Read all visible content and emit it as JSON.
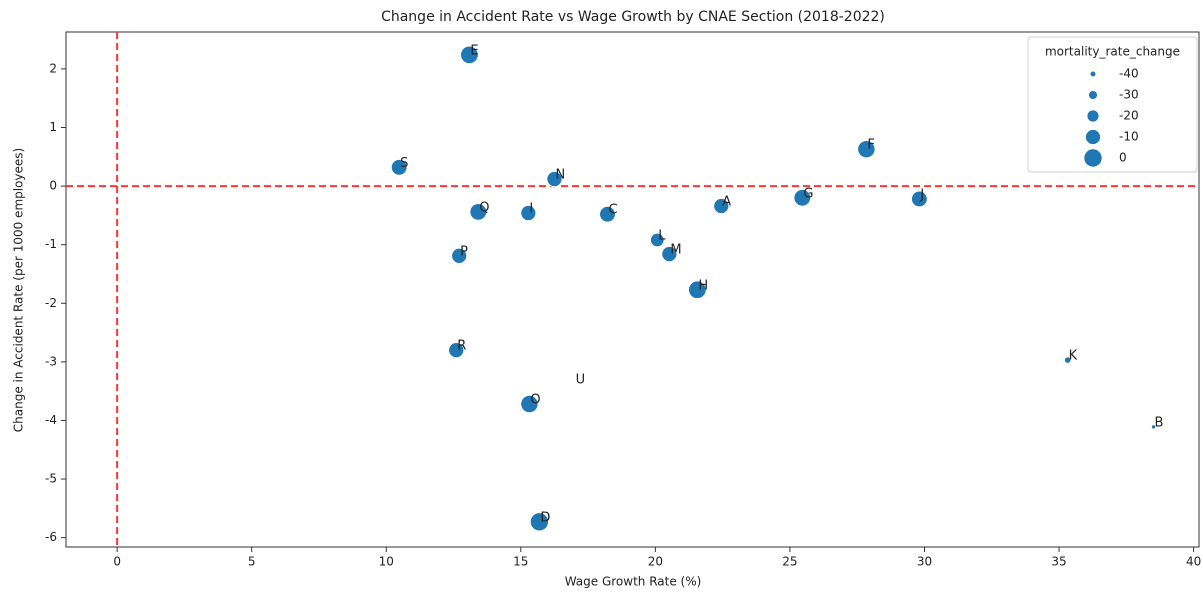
{
  "chart_data": {
    "type": "scatter",
    "title": "Change in Accident Rate vs Wage Growth by CNAE Section (2018-2022)",
    "x_label": "Wage Growth Rate (%)",
    "y_label": "Change in Accident Rate (per 1000 employees)",
    "size_legend_title": "mortality_rate_change",
    "size_legend": [
      -40,
      -30,
      -20,
      -10,
      0
    ],
    "labels": [
      "E",
      "S",
      "N",
      "Q",
      "I",
      "C",
      "A",
      "G",
      "F",
      "J",
      "L",
      "M",
      "P",
      "H",
      "R",
      "U",
      "O",
      "K",
      "B",
      "D"
    ],
    "x": [
      13.09,
      10.48,
      16.25,
      13.42,
      15.28,
      18.22,
      22.45,
      25.46,
      27.84,
      29.81,
      20.07,
      20.52,
      12.71,
      21.56,
      12.6,
      17.0,
      15.32,
      35.32,
      38.51,
      15.69
    ],
    "values": [
      2.24,
      0.32,
      0.12,
      -0.44,
      -0.46,
      -0.48,
      -0.34,
      -0.2,
      0.63,
      -0.22,
      -0.92,
      -1.16,
      -1.19,
      -1.77,
      -2.8,
      -3.38,
      -3.72,
      -2.97,
      -4.11,
      -5.73
    ],
    "sizes": [
      -2,
      -8,
      -10,
      -5,
      -10,
      -8,
      -10,
      -5,
      -3,
      -8,
      -15,
      -10,
      -10,
      -2,
      -10,
      null,
      -3,
      -38,
      -45,
      0
    ],
    "color": "#1f77b4",
    "xlim": [
      -1.9,
      40.2
    ],
    "ylim": [
      -6.16,
      2.63
    ],
    "xticks": [
      0,
      5,
      10,
      15,
      20,
      25,
      30,
      35,
      40
    ],
    "yticks": [
      -6,
      -5,
      -4,
      -3,
      -2,
      -1,
      0,
      1,
      2
    ],
    "hlines": [
      0
    ],
    "vlines": [
      0
    ],
    "ref_color": "#ff3333",
    "legend": "upper right"
  }
}
